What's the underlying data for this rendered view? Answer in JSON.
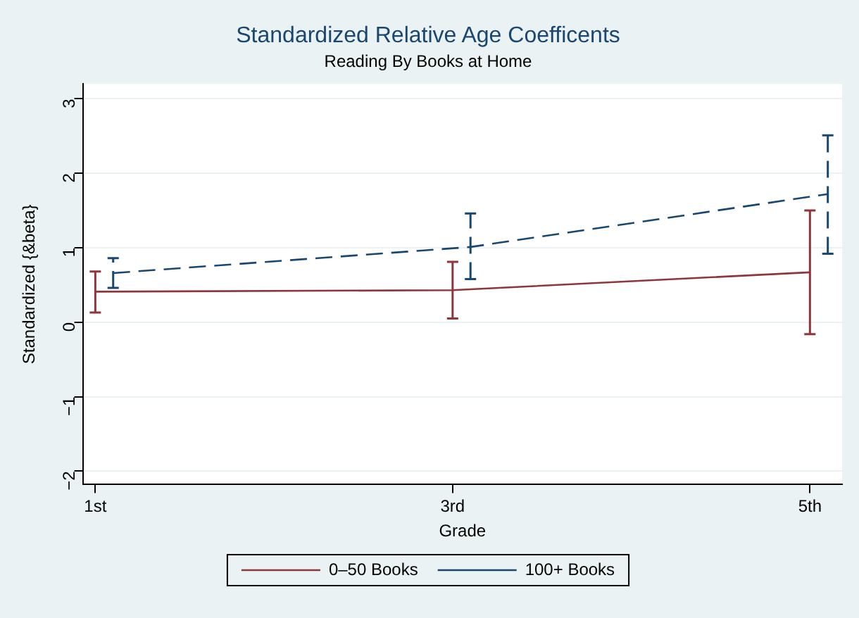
{
  "chart_data": {
    "type": "line",
    "title": "Standardized Relative Age Coefficents",
    "subtitle": "Reading By Books at Home",
    "xlabel": "Grade",
    "ylabel": "Standardized {&beta}",
    "xlim": [
      0.93,
      5.18
    ],
    "xticks": [
      {
        "value": 1,
        "label": "1st"
      },
      {
        "value": 3,
        "label": "3rd"
      },
      {
        "value": 5,
        "label": "5th"
      }
    ],
    "ylim": [
      -2.18,
      3.2
    ],
    "yticks": [
      -2,
      -1,
      0,
      1,
      2,
      3
    ],
    "grid": "y",
    "legend": "bottom",
    "marker": "none",
    "series": [
      {
        "name": "0–50 Books",
        "color": "#90353b",
        "line_style": "solid",
        "x": [
          1,
          3,
          5
        ],
        "values": [
          0.41,
          0.43,
          0.67
        ],
        "errors": [
          [
            0.13,
            0.68
          ],
          [
            0.05,
            0.81
          ],
          [
            -0.16,
            1.5
          ]
        ]
      },
      {
        "name": "100+ Books",
        "color": "#1a476f",
        "line_style": "dashed",
        "x": [
          1.1,
          3.1,
          5.1
        ],
        "values": [
          0.66,
          1.01,
          1.72
        ],
        "errors": [
          [
            0.46,
            0.86
          ],
          [
            0.58,
            1.46
          ],
          [
            0.92,
            2.51
          ]
        ]
      }
    ]
  }
}
